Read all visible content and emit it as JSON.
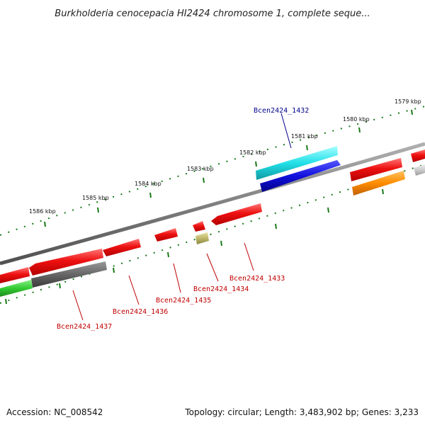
{
  "title": "Burkholderia cenocepacia HI2424 chromosome 1, complete seque...",
  "footer": {
    "accession": "Accession: NC_008542",
    "summary": "Topology: circular; Length: 3,483,902 bp; Genes: 3,233"
  },
  "ticks": [
    "1579 kbp",
    "1580 kbp",
    "1581 kbp",
    "1582 kbp",
    "1583 kbp",
    "1584 kbp",
    "1585 kbp",
    "1586 kbp"
  ],
  "gene_labels": [
    {
      "id": "Bcen2424_1432",
      "color": "#00008b"
    },
    {
      "id": "Bcen2424_1433",
      "color": "#c00000"
    },
    {
      "id": "Bcen2424_1434",
      "color": "#c00000"
    },
    {
      "id": "Bcen2424_1435",
      "color": "#c00000"
    },
    {
      "id": "Bcen2424_1436",
      "color": "#c00000"
    },
    {
      "id": "Bcen2424_1437",
      "color": "#c00000"
    }
  ],
  "colors": {
    "backbone": "#808080",
    "tick": "#1a7a1a",
    "gene_red": "#ee1111",
    "gene_cyan": "#22e0e8",
    "gene_blue": "#1111dd",
    "gene_orange": "#ff8c00",
    "gene_gray": "#666666",
    "gene_green": "#33cc33",
    "gene_olive": "#bdb76b"
  }
}
